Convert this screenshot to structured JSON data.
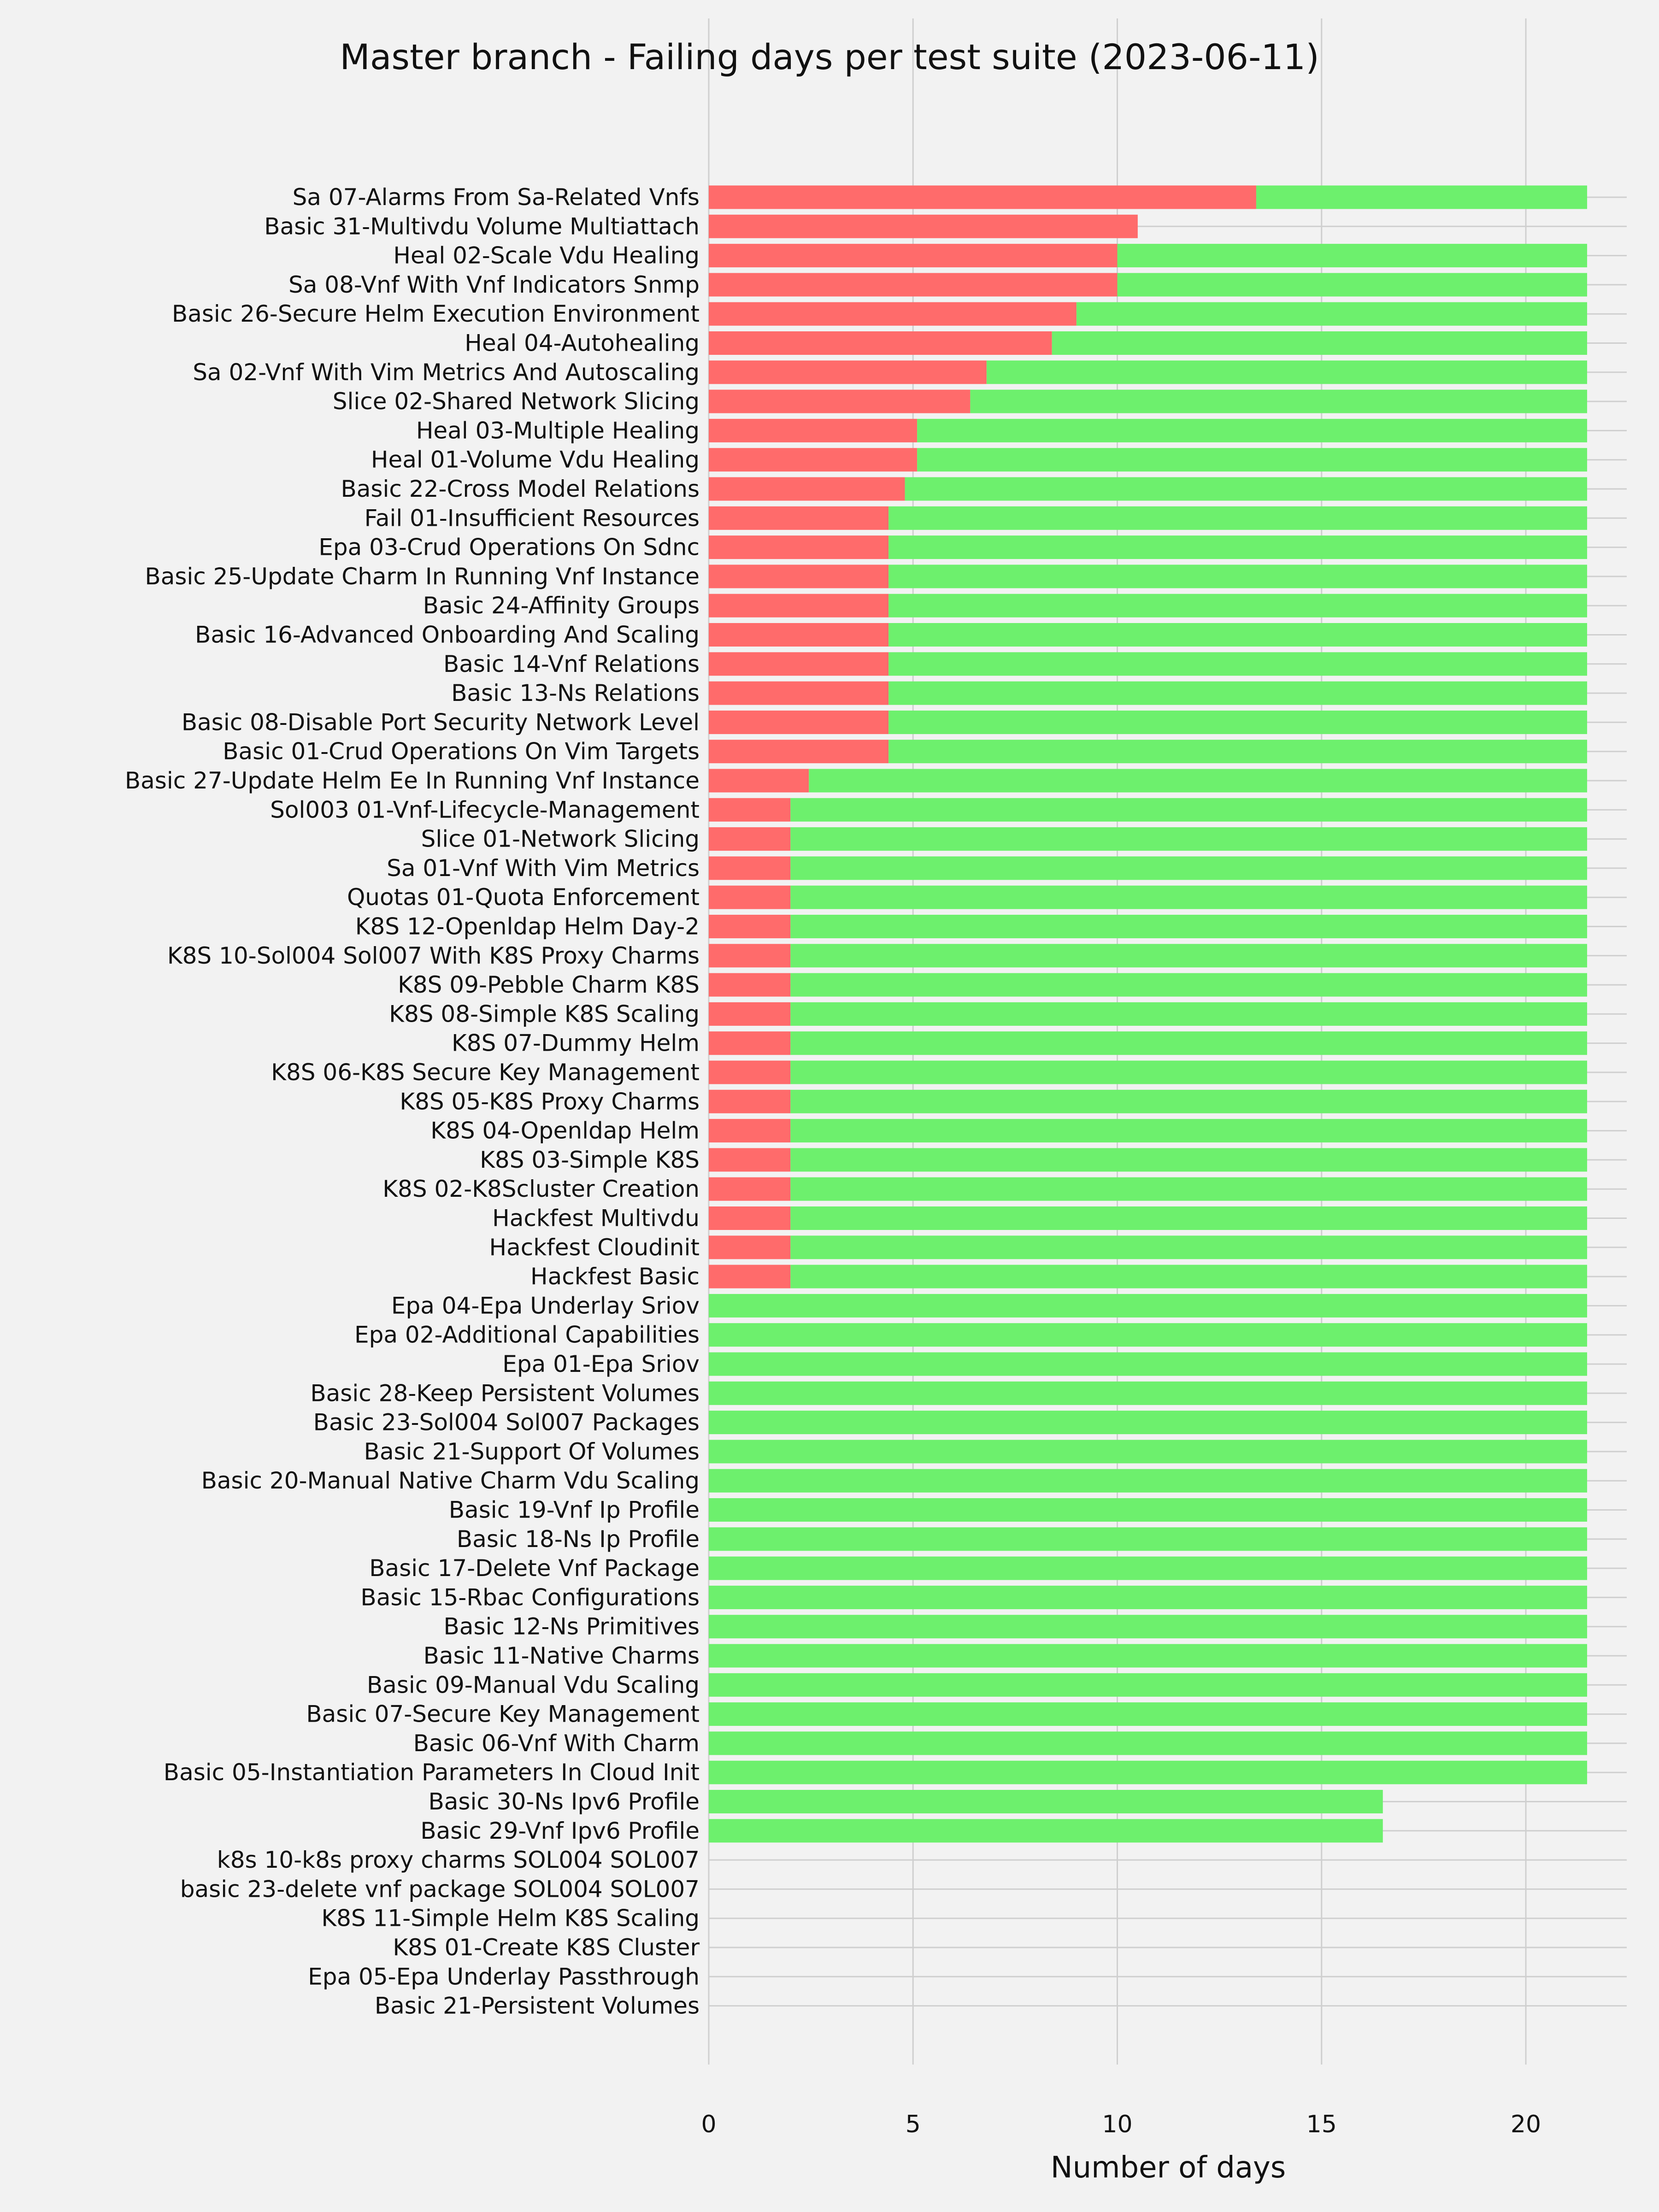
{
  "chart_data": {
    "type": "bar",
    "orientation": "horizontal",
    "stacked": true,
    "title": "Master branch - Failing days per test suite (2023-06-11)",
    "xlabel": "Number of days",
    "ylabel": "",
    "xlim": [
      0,
      22.5
    ],
    "x_ticks": [
      0,
      5,
      10,
      15,
      20
    ],
    "grid": true,
    "legend": "none",
    "categories": [
      "Sa 07-Alarms From Sa-Related Vnfs",
      "Basic 31-Multivdu Volume Multiattach",
      "Heal 02-Scale Vdu Healing",
      "Sa 08-Vnf With Vnf Indicators Snmp",
      "Basic 26-Secure Helm Execution Environment",
      "Heal 04-Autohealing",
      "Sa 02-Vnf With Vim Metrics And Autoscaling",
      "Slice 02-Shared Network Slicing",
      "Heal 03-Multiple Healing",
      "Heal 01-Volume Vdu Healing",
      "Basic 22-Cross Model Relations",
      "Fail 01-Insufficient Resources",
      "Epa 03-Crud Operations On Sdnc",
      "Basic 25-Update Charm In Running Vnf Instance",
      "Basic 24-Affinity Groups",
      "Basic 16-Advanced Onboarding And Scaling",
      "Basic 14-Vnf Relations",
      "Basic 13-Ns Relations",
      "Basic 08-Disable Port Security Network Level",
      "Basic 01-Crud Operations On Vim Targets",
      "Basic 27-Update Helm Ee In Running Vnf Instance",
      "Sol003 01-Vnf-Lifecycle-Management",
      "Slice 01-Network Slicing",
      "Sa 01-Vnf With Vim Metrics",
      "Quotas 01-Quota Enforcement",
      "K8S 12-Openldap Helm Day-2",
      "K8S 10-Sol004 Sol007 With K8S Proxy Charms",
      "K8S 09-Pebble Charm K8S",
      "K8S 08-Simple K8S Scaling",
      "K8S 07-Dummy Helm",
      "K8S 06-K8S Secure Key Management",
      "K8S 05-K8S Proxy Charms",
      "K8S 04-Openldap Helm",
      "K8S 03-Simple K8S",
      "K8S 02-K8Scluster Creation",
      "Hackfest Multivdu",
      "Hackfest Cloudinit",
      "Hackfest Basic",
      "Epa 04-Epa Underlay Sriov",
      "Epa 02-Additional Capabilities",
      "Epa 01-Epa Sriov",
      "Basic 28-Keep Persistent Volumes",
      "Basic 23-Sol004 Sol007 Packages",
      "Basic 21-Support Of Volumes",
      "Basic 20-Manual Native Charm Vdu Scaling",
      "Basic 19-Vnf Ip Profile",
      "Basic 18-Ns Ip Profile",
      "Basic 17-Delete Vnf Package",
      "Basic 15-Rbac Configurations",
      "Basic 12-Ns Primitives",
      "Basic 11-Native Charms",
      "Basic 09-Manual Vdu Scaling",
      "Basic 07-Secure Key Management",
      "Basic 06-Vnf With Charm",
      "Basic 05-Instantiation Parameters In Cloud Init",
      "Basic 30-Ns Ipv6 Profile",
      "Basic 29-Vnf Ipv6 Profile",
      "k8s 10-k8s proxy charms SOL004 SOL007",
      "basic 23-delete vnf package SOL004 SOL007",
      "K8S 11-Simple Helm K8S Scaling",
      "K8S 01-Create K8S Cluster",
      "Epa 05-Epa Underlay Passthrough",
      "Basic 21-Persistent Volumes"
    ],
    "series": [
      {
        "color": "#ff6b6b",
        "values": [
          13.4,
          10.5,
          10.0,
          10.0,
          9.0,
          8.4,
          6.8,
          6.4,
          5.1,
          5.1,
          4.8,
          4.4,
          4.4,
          4.4,
          4.4,
          4.4,
          4.4,
          4.4,
          4.4,
          4.4,
          2.45,
          2.0,
          2.0,
          2.0,
          2.0,
          2.0,
          2.0,
          2.0,
          2.0,
          2.0,
          2.0,
          2.0,
          2.0,
          2.0,
          2.0,
          2.0,
          2.0,
          2.0,
          0,
          0,
          0,
          0,
          0,
          0,
          0,
          0,
          0,
          0,
          0,
          0,
          0,
          0,
          0,
          0,
          0,
          0,
          0,
          0,
          0,
          0,
          0,
          0,
          0
        ]
      },
      {
        "color": "#6df06d",
        "values": [
          8.1,
          0,
          11.5,
          11.5,
          12.5,
          13.1,
          14.7,
          15.1,
          16.4,
          16.4,
          16.7,
          17.1,
          17.1,
          17.1,
          17.1,
          17.1,
          17.1,
          17.1,
          17.1,
          17.1,
          19.05,
          19.5,
          19.5,
          19.5,
          19.5,
          19.5,
          19.5,
          19.5,
          19.5,
          19.5,
          19.5,
          19.5,
          19.5,
          19.5,
          19.5,
          19.5,
          19.5,
          19.5,
          21.5,
          21.5,
          21.5,
          21.5,
          21.5,
          21.5,
          21.5,
          21.5,
          21.5,
          21.5,
          21.5,
          21.5,
          21.5,
          21.5,
          21.5,
          21.5,
          21.5,
          16.5,
          16.5,
          0,
          0,
          0,
          0,
          0,
          0
        ]
      }
    ]
  }
}
